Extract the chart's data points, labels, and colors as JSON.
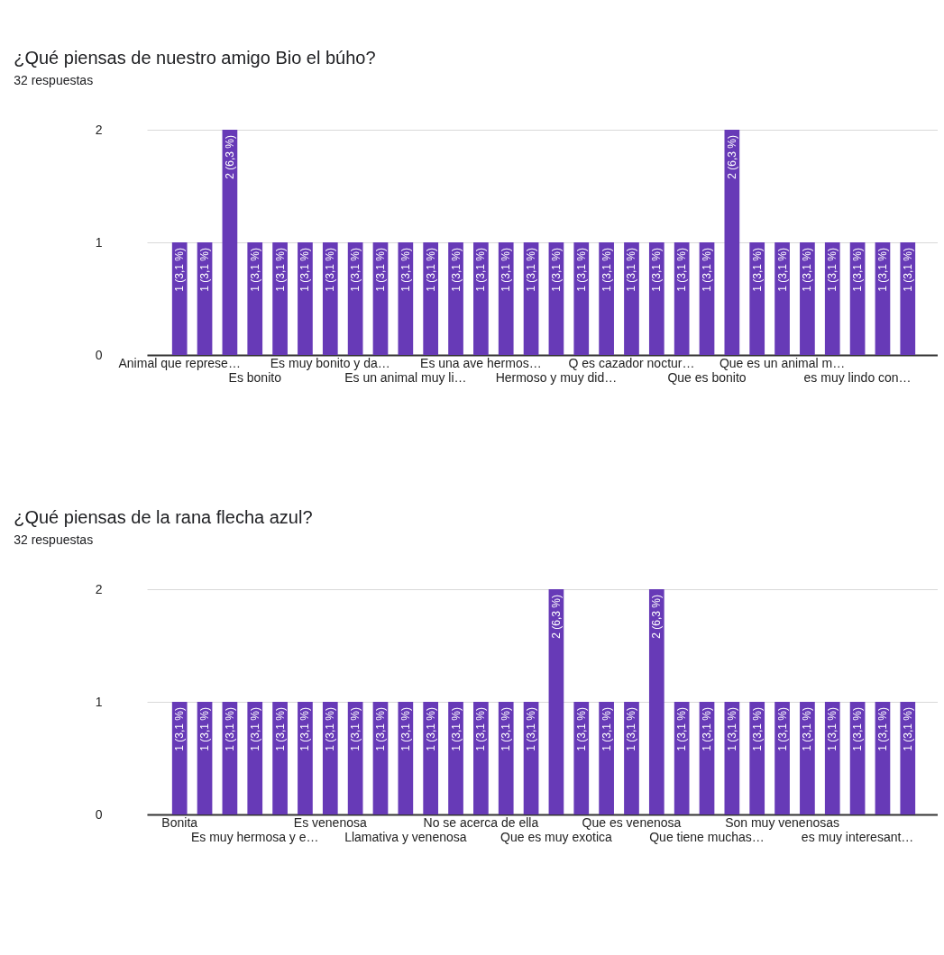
{
  "chart_data": [
    {
      "type": "bar",
      "title": "¿Qué piensas de nuestro amigo Bio el búho?",
      "subtitle": "32 respuestas",
      "categories": [
        "Animal que represe…",
        null,
        null,
        "Es bonito",
        null,
        null,
        "Es muy bonito y da…",
        null,
        null,
        "Es un animal muy li…",
        null,
        null,
        "Es una ave hermos…",
        null,
        null,
        "Hermoso y muy did…",
        null,
        null,
        "Q es cazador noctur…",
        null,
        null,
        "Que es bonito",
        null,
        null,
        "Que es un animal m…",
        null,
        null,
        "es muy lindo con…",
        null,
        null
      ],
      "values": [
        1,
        1,
        2,
        1,
        1,
        1,
        1,
        1,
        1,
        1,
        1,
        1,
        1,
        1,
        1,
        1,
        1,
        1,
        1,
        1,
        1,
        1,
        2,
        1,
        1,
        1,
        1,
        1,
        1,
        1
      ],
      "value_labels": [
        "1 (3,1 %)",
        "1 (3,1 %)",
        "2 (6,3 %)",
        "1 (3,1 %)",
        "1 (3,1 %)",
        "1 (3,1 %)",
        "1 (3,1 %)",
        "1 (3,1 %)",
        "1 (3,1 %)",
        "1 (3,1 %)",
        "1 (3,1 %)",
        "1 (3,1 %)",
        "1 (3,1 %)",
        "1 (3,1 %)",
        "1 (3,1 %)",
        "1 (3,1 %)",
        "1 (3,1 %)",
        "1 (3,1 %)",
        "1 (3,1 %)",
        "1 (3,1 %)",
        "1 (3,1 %)",
        "1 (3,1 %)",
        "2 (6,3 %)",
        "1 (3,1 %)",
        "1 (3,1 %)",
        "1 (3,1 %)",
        "1 (3,1 %)",
        "1 (3,1 %)",
        "1 (3,1 %)",
        "1 (3,1 %)"
      ],
      "color": "#673ab7",
      "ylim": [
        0,
        2
      ],
      "yticks": [
        0,
        1,
        2
      ],
      "grid": "y"
    },
    {
      "type": "bar",
      "title": "¿Qué piensas de la rana flecha azul?",
      "subtitle": "32 respuestas",
      "categories": [
        "Bonita",
        null,
        null,
        "Es muy hermosa y e…",
        null,
        null,
        "Es venenosa",
        null,
        null,
        "Llamativa y venenosa",
        null,
        null,
        "No se acerca de ella",
        null,
        null,
        "Que es muy exotica",
        null,
        null,
        "Que es venenosa",
        null,
        null,
        "Que tiene muchas…",
        null,
        null,
        "Son muy venenosas",
        null,
        null,
        "es muy interesant…",
        null,
        null
      ],
      "values": [
        1,
        1,
        1,
        1,
        1,
        1,
        1,
        1,
        1,
        1,
        1,
        1,
        1,
        1,
        1,
        2,
        1,
        1,
        1,
        2,
        1,
        1,
        1,
        1,
        1,
        1,
        1,
        1,
        1,
        1
      ],
      "value_labels": [
        "1 (3,1 %)",
        "1 (3,1 %)",
        "1 (3,1 %)",
        "1 (3,1 %)",
        "1 (3,1 %)",
        "1 (3,1 %)",
        "1 (3,1 %)",
        "1 (3,1 %)",
        "1 (3,1 %)",
        "1 (3,1 %)",
        "1 (3,1 %)",
        "1 (3,1 %)",
        "1 (3,1 %)",
        "1 (3,1 %)",
        "1 (3,1 %)",
        "2 (6,3 %)",
        "1 (3,1 %)",
        "1 (3,1 %)",
        "1 (3,1 %)",
        "2 (6,3 %)",
        "1 (3,1 %)",
        "1 (3,1 %)",
        "1 (3,1 %)",
        "1 (3,1 %)",
        "1 (3,1 %)",
        "1 (3,1 %)",
        "1 (3,1 %)",
        "1 (3,1 %)",
        "1 (3,1 %)",
        "1 (3,1 %)"
      ],
      "color": "#673ab7",
      "ylim": [
        0,
        2
      ],
      "yticks": [
        0,
        1,
        2
      ],
      "grid": "y"
    }
  ]
}
